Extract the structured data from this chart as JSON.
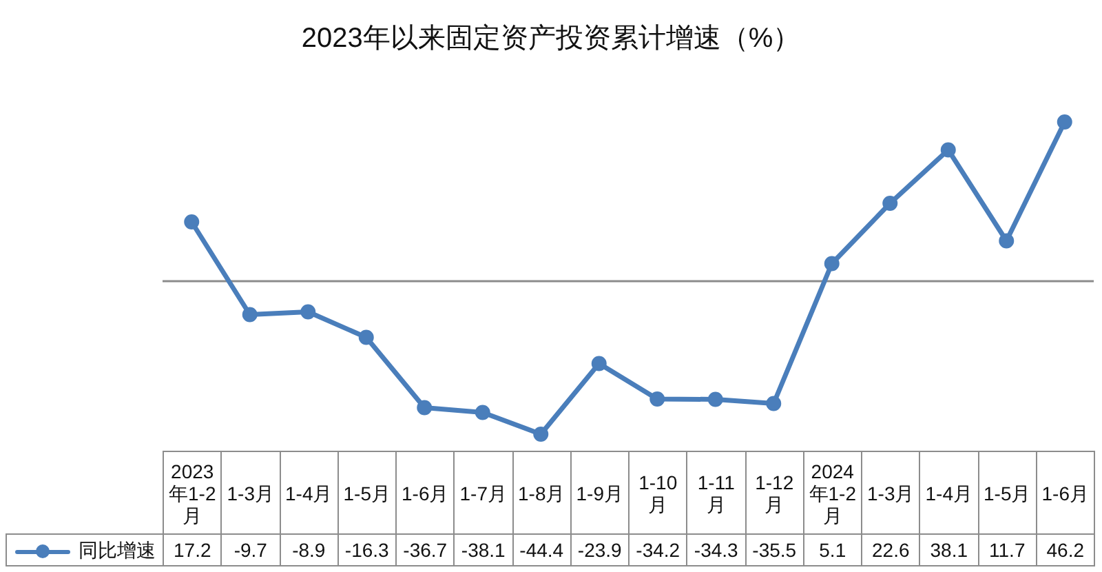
{
  "chart_data": {
    "type": "line",
    "title": "2023年以来固定资产投资累计增速（%）",
    "categories": [
      "2023年1-2月",
      "1-3月",
      "1-4月",
      "1-5月",
      "1-6月",
      "1-7月",
      "1-8月",
      "1-9月",
      "1-10月",
      "1-11月",
      "1-12月",
      "2024年1-2月",
      "1-3月",
      "1-4月",
      "1-5月",
      "1-6月"
    ],
    "series": [
      {
        "name": "同比增速",
        "color": "#4a7ebb",
        "values": [
          17.2,
          -9.7,
          -8.9,
          -16.3,
          -36.7,
          -38.1,
          -44.4,
          -23.9,
          -34.2,
          -34.3,
          -35.5,
          5.1,
          22.6,
          38.1,
          11.7,
          46.2
        ]
      }
    ],
    "ref_lines": [
      {
        "axis": "y",
        "value": 0,
        "color": "#8c8c8c"
      }
    ],
    "data_labels": true,
    "legend": "bottom left",
    "marker": "circle",
    "tick_labels": "x"
  }
}
